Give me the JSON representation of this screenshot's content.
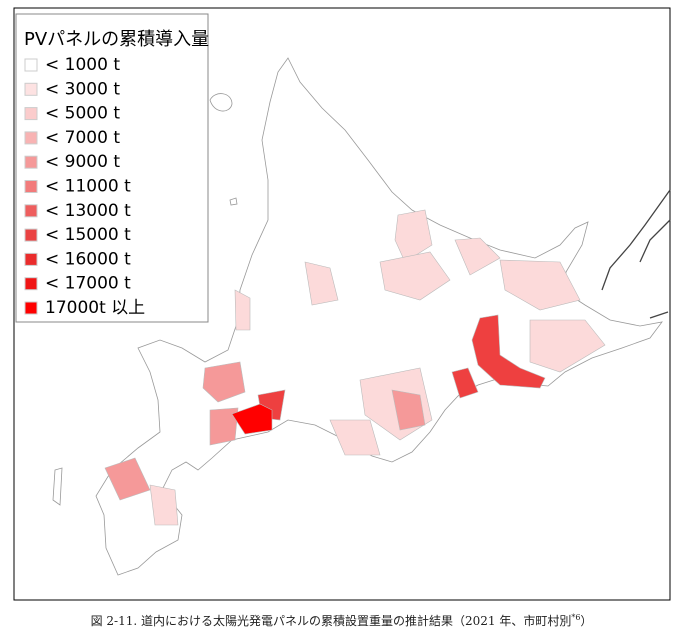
{
  "legend": {
    "title": "PVパネルの累積導入量",
    "items": [
      {
        "label": "< 1000 t",
        "color": "#ffffff"
      },
      {
        "label": "< 3000 t",
        "color": "#fde2e2"
      },
      {
        "label": "< 5000 t",
        "color": "#fbcccc"
      },
      {
        "label": "< 7000 t",
        "color": "#f8b3b3"
      },
      {
        "label": "< 9000 t",
        "color": "#f59999"
      },
      {
        "label": "< 11000 t",
        "color": "#f27b7b"
      },
      {
        "label": "< 13000 t",
        "color": "#ee5e5e"
      },
      {
        "label": "< 15000 t",
        "color": "#ea4242"
      },
      {
        "label": "< 16000 t",
        "color": "#ea2c2c"
      },
      {
        "label": "< 17000 t",
        "color": "#f01515"
      },
      {
        "label": "17000t 以上",
        "color": "#ff0000"
      }
    ]
  },
  "caption": {
    "text": "図 2-11. 道内における太陽光発電パネルの累積設置重量の推計結果（2021 年、市町村別",
    "note": "*6",
    "close": "）"
  }
}
